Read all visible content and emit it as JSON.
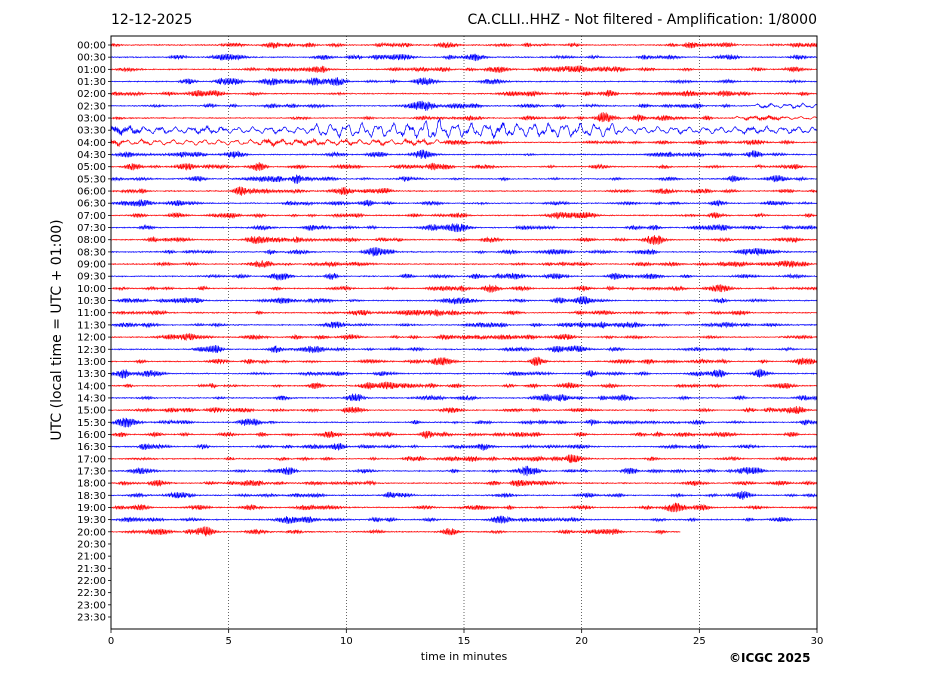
{
  "header": {
    "date": "12-12-2025",
    "title": "CA.CLLI..HHZ - Not filtered - Amplification: 1/8000"
  },
  "footer": {
    "copyright": "©ICGC 2025"
  },
  "chart_data": {
    "type": "line",
    "subtype": "helicorder",
    "xlabel": "time in minutes",
    "ylabel": "UTC (local time = UTC + 01:00)",
    "xlim": [
      0,
      30
    ],
    "xticks": [
      0,
      5,
      10,
      15,
      20,
      25,
      30
    ],
    "vertical_gridlines_at": [
      5,
      10,
      15,
      20,
      25
    ],
    "row_labels": [
      "00:00",
      "00:30",
      "01:00",
      "01:30",
      "02:00",
      "02:30",
      "03:00",
      "03:30",
      "04:00",
      "04:30",
      "05:00",
      "05:30",
      "06:00",
      "06:30",
      "07:00",
      "07:30",
      "08:00",
      "08:30",
      "09:00",
      "09:30",
      "10:00",
      "10:30",
      "11:00",
      "11:30",
      "12:00",
      "12:30",
      "13:00",
      "13:30",
      "14:00",
      "14:30",
      "15:00",
      "15:30",
      "16:00",
      "16:30",
      "17:00",
      "17:30",
      "18:00",
      "18:30",
      "19:00",
      "19:30",
      "20:00",
      "20:30",
      "21:00",
      "21:30",
      "22:00",
      "22:30",
      "23:00",
      "23:30"
    ],
    "trace_colors": [
      "#ff0000",
      "#0000ff"
    ],
    "trace_color_pattern": "alternating, starting red at 00:00",
    "recorded_rows": 41,
    "last_row_end_minute": 24.2,
    "noise_amplitude": 1.0,
    "events": [
      {
        "row": "02:30",
        "start_minute": 27.2,
        "end_minute": 30,
        "amplitude": 2.2
      },
      {
        "row": "03:00",
        "start_minute": 26.5,
        "end_minute": 30,
        "amplitude": 1.5
      },
      {
        "row": "03:30",
        "start_minute": 0,
        "end_minute": 30,
        "amplitude": 3.2
      },
      {
        "row": "03:30",
        "start_minute": 8.5,
        "end_minute": 21.5,
        "amplitude": 6.5
      },
      {
        "row": "03:30",
        "start_minute": 13.3,
        "end_minute": 14.0,
        "amplitude": 11
      },
      {
        "row": "04:00",
        "start_minute": 0,
        "end_minute": 14.0,
        "amplitude": 2.6
      }
    ]
  }
}
